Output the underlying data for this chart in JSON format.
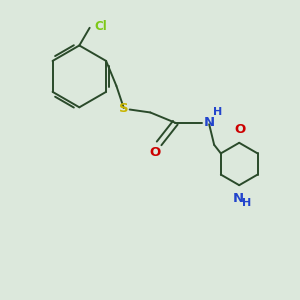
{
  "bg_color": "#dce8dc",
  "bond_color": "#2a4a2a",
  "cl_color": "#7dc818",
  "s_color": "#c8b400",
  "o_color": "#cc0000",
  "n_color": "#2244cc",
  "figsize": [
    3.0,
    3.0
  ],
  "dpi": 100,
  "xlim": [
    0,
    10
  ],
  "ylim": [
    0,
    10
  ]
}
